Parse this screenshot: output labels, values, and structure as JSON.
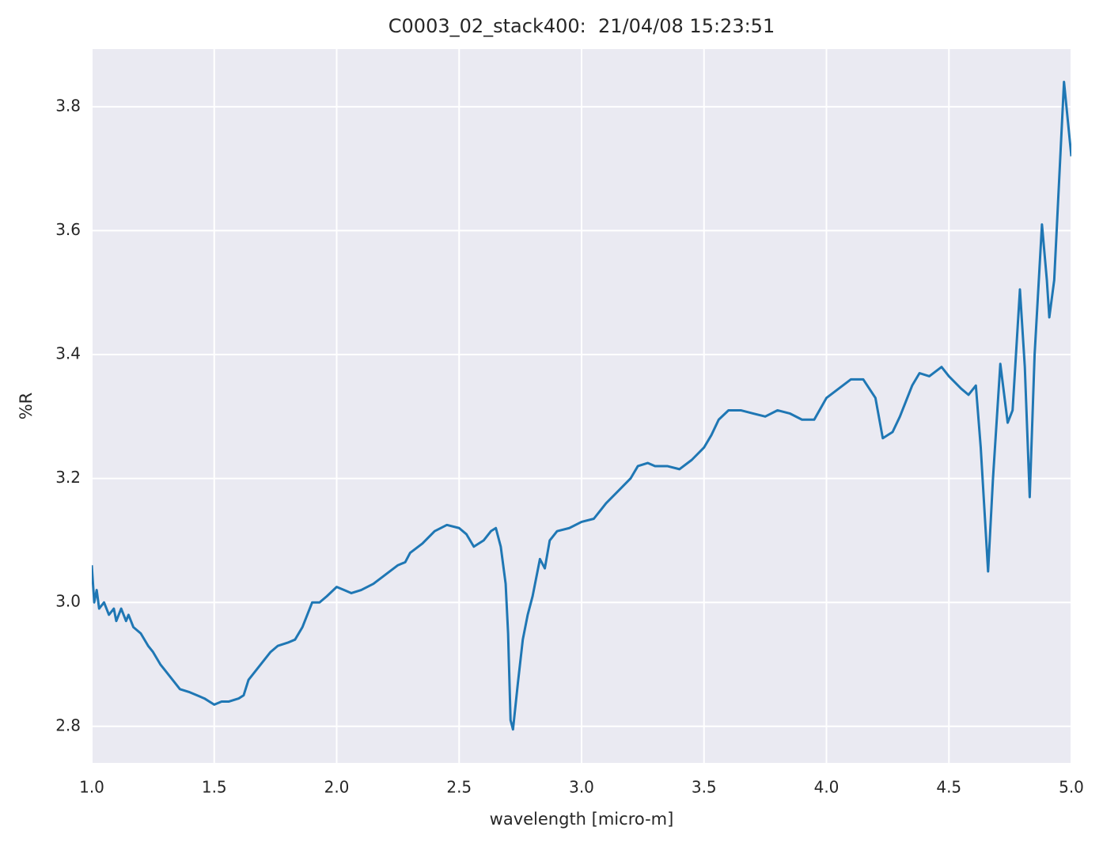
{
  "chart_data": {
    "type": "line",
    "title": "C0003_02_stack400:  21/04/08 15:23:51",
    "x_label": "wavelength [micro-m]",
    "y_label": "%R",
    "color": "#1f77b4",
    "grid": true,
    "x": [
      1.0,
      1.01,
      1.02,
      1.03,
      1.05,
      1.07,
      1.09,
      1.1,
      1.12,
      1.14,
      1.15,
      1.17,
      1.2,
      1.23,
      1.25,
      1.28,
      1.3,
      1.33,
      1.36,
      1.4,
      1.43,
      1.46,
      1.5,
      1.53,
      1.56,
      1.6,
      1.62,
      1.64,
      1.67,
      1.7,
      1.73,
      1.76,
      1.8,
      1.83,
      1.86,
      1.88,
      1.9,
      1.93,
      1.96,
      2.0,
      2.03,
      2.06,
      2.1,
      2.15,
      2.2,
      2.25,
      2.28,
      2.3,
      2.35,
      2.4,
      2.45,
      2.5,
      2.53,
      2.56,
      2.6,
      2.63,
      2.65,
      2.67,
      2.69,
      2.7,
      2.71,
      2.72,
      2.74,
      2.76,
      2.78,
      2.8,
      2.82,
      2.83,
      2.85,
      2.87,
      2.9,
      2.95,
      3.0,
      3.05,
      3.1,
      3.15,
      3.2,
      3.23,
      3.27,
      3.3,
      3.35,
      3.4,
      3.45,
      3.5,
      3.53,
      3.56,
      3.6,
      3.65,
      3.7,
      3.75,
      3.8,
      3.85,
      3.9,
      3.95,
      4.0,
      4.05,
      4.1,
      4.15,
      4.2,
      4.23,
      4.27,
      4.3,
      4.35,
      4.38,
      4.42,
      4.47,
      4.5,
      4.55,
      4.58,
      4.61,
      4.63,
      4.66,
      4.68,
      4.71,
      4.74,
      4.76,
      4.79,
      4.81,
      4.83,
      4.85,
      4.88,
      4.9,
      4.91,
      4.93,
      4.97,
      5.0
    ],
    "values": [
      3.06,
      3.0,
      3.02,
      2.99,
      3.0,
      2.98,
      2.99,
      2.97,
      2.99,
      2.97,
      2.98,
      2.96,
      2.95,
      2.93,
      2.92,
      2.9,
      2.89,
      2.875,
      2.86,
      2.855,
      2.85,
      2.845,
      2.835,
      2.84,
      2.84,
      2.845,
      2.85,
      2.875,
      2.89,
      2.905,
      2.92,
      2.93,
      2.935,
      2.94,
      2.96,
      2.98,
      3.0,
      3.0,
      3.01,
      3.025,
      3.02,
      3.015,
      3.02,
      3.03,
      3.045,
      3.06,
      3.065,
      3.08,
      3.095,
      3.115,
      3.125,
      3.12,
      3.11,
      3.09,
      3.1,
      3.115,
      3.12,
      3.09,
      3.03,
      2.95,
      2.81,
      2.795,
      2.87,
      2.94,
      2.98,
      3.01,
      3.05,
      3.07,
      3.055,
      3.1,
      3.115,
      3.12,
      3.13,
      3.135,
      3.16,
      3.18,
      3.2,
      3.22,
      3.225,
      3.22,
      3.22,
      3.215,
      3.23,
      3.25,
      3.27,
      3.295,
      3.31,
      3.31,
      3.305,
      3.3,
      3.31,
      3.305,
      3.295,
      3.295,
      3.33,
      3.345,
      3.36,
      3.36,
      3.33,
      3.265,
      3.275,
      3.3,
      3.35,
      3.37,
      3.365,
      3.38,
      3.365,
      3.345,
      3.335,
      3.35,
      3.25,
      3.05,
      3.2,
      3.385,
      3.29,
      3.31,
      3.505,
      3.38,
      3.17,
      3.4,
      3.61,
      3.52,
      3.46,
      3.52,
      3.84,
      3.72
    ],
    "xlim": [
      1.0,
      5.0
    ],
    "xticks": [
      {
        "value": 1,
        "label": "1.0"
      },
      1.5,
      {
        "value": 2,
        "label": "2.0"
      },
      2.5,
      {
        "value": 3,
        "label": "3.0"
      },
      3.5,
      {
        "value": 4,
        "label": "4.0"
      },
      4.5,
      {
        "value": 5,
        "label": "5.0"
      }
    ],
    "ylim": [
      2.741,
      3.893
    ],
    "yticks": [
      2.8,
      {
        "value": 3,
        "label": "3.0"
      },
      3.2,
      3.4,
      3.6,
      3.8
    ]
  }
}
